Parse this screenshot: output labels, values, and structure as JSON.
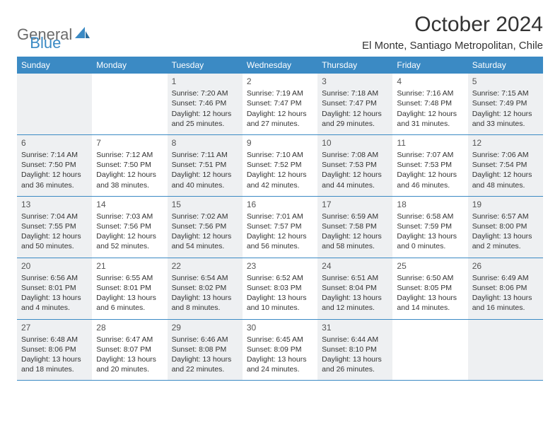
{
  "brand": {
    "part1": "General",
    "part2": "Blue",
    "sail_color": "#3b8ac4"
  },
  "title": "October 2024",
  "location": "El Monte, Santiago Metropolitan, Chile",
  "header_bg": "#3b8ac4",
  "shade_bg": "#eef0f2",
  "days": [
    "Sunday",
    "Monday",
    "Tuesday",
    "Wednesday",
    "Thursday",
    "Friday",
    "Saturday"
  ],
  "weeks": [
    [
      {
        "blank": true,
        "shade": true
      },
      {
        "blank": true,
        "shade": false
      },
      {
        "num": "1",
        "shade": true,
        "sunrise": "Sunrise: 7:20 AM",
        "sunset": "Sunset: 7:46 PM",
        "day1": "Daylight: 12 hours",
        "day2": "and 25 minutes."
      },
      {
        "num": "2",
        "shade": false,
        "sunrise": "Sunrise: 7:19 AM",
        "sunset": "Sunset: 7:47 PM",
        "day1": "Daylight: 12 hours",
        "day2": "and 27 minutes."
      },
      {
        "num": "3",
        "shade": true,
        "sunrise": "Sunrise: 7:18 AM",
        "sunset": "Sunset: 7:47 PM",
        "day1": "Daylight: 12 hours",
        "day2": "and 29 minutes."
      },
      {
        "num": "4",
        "shade": false,
        "sunrise": "Sunrise: 7:16 AM",
        "sunset": "Sunset: 7:48 PM",
        "day1": "Daylight: 12 hours",
        "day2": "and 31 minutes."
      },
      {
        "num": "5",
        "shade": true,
        "sunrise": "Sunrise: 7:15 AM",
        "sunset": "Sunset: 7:49 PM",
        "day1": "Daylight: 12 hours",
        "day2": "and 33 minutes."
      }
    ],
    [
      {
        "num": "6",
        "shade": true,
        "sunrise": "Sunrise: 7:14 AM",
        "sunset": "Sunset: 7:50 PM",
        "day1": "Daylight: 12 hours",
        "day2": "and 36 minutes."
      },
      {
        "num": "7",
        "shade": false,
        "sunrise": "Sunrise: 7:12 AM",
        "sunset": "Sunset: 7:50 PM",
        "day1": "Daylight: 12 hours",
        "day2": "and 38 minutes."
      },
      {
        "num": "8",
        "shade": true,
        "sunrise": "Sunrise: 7:11 AM",
        "sunset": "Sunset: 7:51 PM",
        "day1": "Daylight: 12 hours",
        "day2": "and 40 minutes."
      },
      {
        "num": "9",
        "shade": false,
        "sunrise": "Sunrise: 7:10 AM",
        "sunset": "Sunset: 7:52 PM",
        "day1": "Daylight: 12 hours",
        "day2": "and 42 minutes."
      },
      {
        "num": "10",
        "shade": true,
        "sunrise": "Sunrise: 7:08 AM",
        "sunset": "Sunset: 7:53 PM",
        "day1": "Daylight: 12 hours",
        "day2": "and 44 minutes."
      },
      {
        "num": "11",
        "shade": false,
        "sunrise": "Sunrise: 7:07 AM",
        "sunset": "Sunset: 7:53 PM",
        "day1": "Daylight: 12 hours",
        "day2": "and 46 minutes."
      },
      {
        "num": "12",
        "shade": true,
        "sunrise": "Sunrise: 7:06 AM",
        "sunset": "Sunset: 7:54 PM",
        "day1": "Daylight: 12 hours",
        "day2": "and 48 minutes."
      }
    ],
    [
      {
        "num": "13",
        "shade": true,
        "sunrise": "Sunrise: 7:04 AM",
        "sunset": "Sunset: 7:55 PM",
        "day1": "Daylight: 12 hours",
        "day2": "and 50 minutes."
      },
      {
        "num": "14",
        "shade": false,
        "sunrise": "Sunrise: 7:03 AM",
        "sunset": "Sunset: 7:56 PM",
        "day1": "Daylight: 12 hours",
        "day2": "and 52 minutes."
      },
      {
        "num": "15",
        "shade": true,
        "sunrise": "Sunrise: 7:02 AM",
        "sunset": "Sunset: 7:56 PM",
        "day1": "Daylight: 12 hours",
        "day2": "and 54 minutes."
      },
      {
        "num": "16",
        "shade": false,
        "sunrise": "Sunrise: 7:01 AM",
        "sunset": "Sunset: 7:57 PM",
        "day1": "Daylight: 12 hours",
        "day2": "and 56 minutes."
      },
      {
        "num": "17",
        "shade": true,
        "sunrise": "Sunrise: 6:59 AM",
        "sunset": "Sunset: 7:58 PM",
        "day1": "Daylight: 12 hours",
        "day2": "and 58 minutes."
      },
      {
        "num": "18",
        "shade": false,
        "sunrise": "Sunrise: 6:58 AM",
        "sunset": "Sunset: 7:59 PM",
        "day1": "Daylight: 13 hours",
        "day2": "and 0 minutes."
      },
      {
        "num": "19",
        "shade": true,
        "sunrise": "Sunrise: 6:57 AM",
        "sunset": "Sunset: 8:00 PM",
        "day1": "Daylight: 13 hours",
        "day2": "and 2 minutes."
      }
    ],
    [
      {
        "num": "20",
        "shade": true,
        "sunrise": "Sunrise: 6:56 AM",
        "sunset": "Sunset: 8:01 PM",
        "day1": "Daylight: 13 hours",
        "day2": "and 4 minutes."
      },
      {
        "num": "21",
        "shade": false,
        "sunrise": "Sunrise: 6:55 AM",
        "sunset": "Sunset: 8:01 PM",
        "day1": "Daylight: 13 hours",
        "day2": "and 6 minutes."
      },
      {
        "num": "22",
        "shade": true,
        "sunrise": "Sunrise: 6:54 AM",
        "sunset": "Sunset: 8:02 PM",
        "day1": "Daylight: 13 hours",
        "day2": "and 8 minutes."
      },
      {
        "num": "23",
        "shade": false,
        "sunrise": "Sunrise: 6:52 AM",
        "sunset": "Sunset: 8:03 PM",
        "day1": "Daylight: 13 hours",
        "day2": "and 10 minutes."
      },
      {
        "num": "24",
        "shade": true,
        "sunrise": "Sunrise: 6:51 AM",
        "sunset": "Sunset: 8:04 PM",
        "day1": "Daylight: 13 hours",
        "day2": "and 12 minutes."
      },
      {
        "num": "25",
        "shade": false,
        "sunrise": "Sunrise: 6:50 AM",
        "sunset": "Sunset: 8:05 PM",
        "day1": "Daylight: 13 hours",
        "day2": "and 14 minutes."
      },
      {
        "num": "26",
        "shade": true,
        "sunrise": "Sunrise: 6:49 AM",
        "sunset": "Sunset: 8:06 PM",
        "day1": "Daylight: 13 hours",
        "day2": "and 16 minutes."
      }
    ],
    [
      {
        "num": "27",
        "shade": true,
        "sunrise": "Sunrise: 6:48 AM",
        "sunset": "Sunset: 8:06 PM",
        "day1": "Daylight: 13 hours",
        "day2": "and 18 minutes."
      },
      {
        "num": "28",
        "shade": false,
        "sunrise": "Sunrise: 6:47 AM",
        "sunset": "Sunset: 8:07 PM",
        "day1": "Daylight: 13 hours",
        "day2": "and 20 minutes."
      },
      {
        "num": "29",
        "shade": true,
        "sunrise": "Sunrise: 6:46 AM",
        "sunset": "Sunset: 8:08 PM",
        "day1": "Daylight: 13 hours",
        "day2": "and 22 minutes."
      },
      {
        "num": "30",
        "shade": false,
        "sunrise": "Sunrise: 6:45 AM",
        "sunset": "Sunset: 8:09 PM",
        "day1": "Daylight: 13 hours",
        "day2": "and 24 minutes."
      },
      {
        "num": "31",
        "shade": true,
        "sunrise": "Sunrise: 6:44 AM",
        "sunset": "Sunset: 8:10 PM",
        "day1": "Daylight: 13 hours",
        "day2": "and 26 minutes."
      },
      {
        "blank": true,
        "shade": false
      },
      {
        "blank": true,
        "shade": true
      }
    ]
  ]
}
